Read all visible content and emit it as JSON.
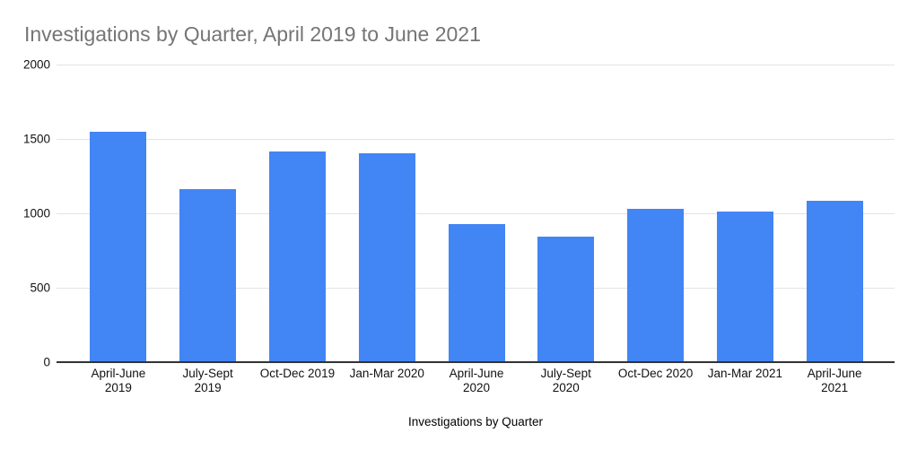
{
  "title": "Investigations by Quarter, April 2019 to June 2021",
  "chart_data": {
    "type": "bar",
    "title": "Investigations by Quarter, April 2019 to June 2021",
    "xlabel": "Investigations by Quarter",
    "ylabel": "",
    "categories": [
      "April-June\n2019",
      "July-Sept\n2019",
      "Oct-Dec 2019",
      "Jan-Mar 2020",
      "April-June\n2020",
      "July-Sept\n2020",
      "Oct-Dec 2020",
      "Jan-Mar 2021",
      "April-June\n2021"
    ],
    "values": [
      1550,
      1160,
      1415,
      1405,
      930,
      845,
      1030,
      1010,
      1085
    ],
    "ylim": [
      0,
      2000
    ],
    "yticks": [
      0,
      500,
      1000,
      1500,
      2000
    ],
    "grid": true,
    "legend": false,
    "colors": {
      "bar": "#4285F4",
      "title": "#757575",
      "gridline": "#E3E3E3",
      "axis_line": "#333333",
      "tick_label": "#111111"
    }
  }
}
